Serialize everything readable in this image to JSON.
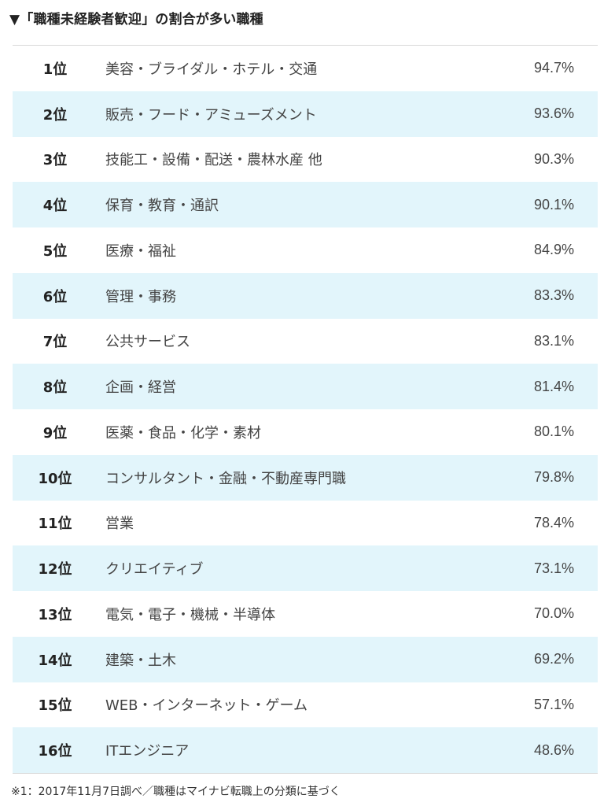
{
  "title": "▼「職種未経験者歓迎」の割合が多い職種",
  "rows": [
    {
      "rank": "1位",
      "job": "美容・ブライダル・ホテル・交通",
      "percent": "94.7%"
    },
    {
      "rank": "2位",
      "job": "販売・フード・アミューズメント",
      "percent": "93.6%"
    },
    {
      "rank": "3位",
      "job": "技能工・設備・配送・農林水産 他",
      "percent": "90.3%"
    },
    {
      "rank": "4位",
      "job": "保育・教育・通訳",
      "percent": "90.1%"
    },
    {
      "rank": "5位",
      "job": "医療・福祉",
      "percent": "84.9%"
    },
    {
      "rank": "6位",
      "job": "管理・事務",
      "percent": "83.3%"
    },
    {
      "rank": "7位",
      "job": "公共サービス",
      "percent": "83.1%"
    },
    {
      "rank": "8位",
      "job": "企画・経営",
      "percent": "81.4%"
    },
    {
      "rank": "9位",
      "job": "医薬・食品・化学・素材",
      "percent": "80.1%"
    },
    {
      "rank": "10位",
      "job": "コンサルタント・金融・不動産専門職",
      "percent": "79.8%"
    },
    {
      "rank": "11位",
      "job": "営業",
      "percent": "78.4%"
    },
    {
      "rank": "12位",
      "job": "クリエイティブ",
      "percent": "73.1%"
    },
    {
      "rank": "13位",
      "job": "電気・電子・機械・半導体",
      "percent": "70.0%"
    },
    {
      "rank": "14位",
      "job": "建築・土木",
      "percent": "69.2%"
    },
    {
      "rank": "15位",
      "job": "WEB・インターネット・ゲーム",
      "percent": "57.1%"
    },
    {
      "rank": "16位",
      "job": "ITエンジニア",
      "percent": "48.6%"
    }
  ],
  "footnote": "※1：2017年11月7日調べ／職種はマイナビ転職上の分類に基づく",
  "colors": {
    "stripe": "#e2f5fb",
    "border": "#d8d8d8"
  }
}
